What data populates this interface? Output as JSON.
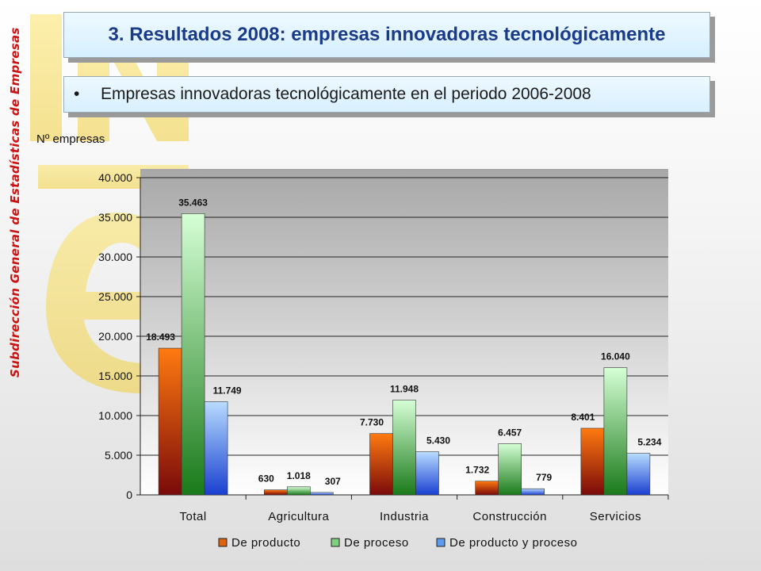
{
  "sidebar": {
    "org_label": "Subdirección General de Estadísticas de Empresas"
  },
  "header": {
    "title": "3. Resultados 2008: empresas innovadoras tecnológicamente",
    "subtitle": "Empresas innovadoras tecnológicamente en el periodo 2006-2008",
    "bullet": "•"
  },
  "colors": {
    "title_text": "#1a3a8a",
    "side_label": "#cc1111",
    "logo": "#f4d44a",
    "series": [
      "#e0620e",
      "#7fd17f",
      "#5a9cf0"
    ]
  },
  "chart_data": {
    "type": "bar",
    "ylabel": "Nº empresas",
    "ylim": [
      0,
      40000
    ],
    "yticks": [
      0,
      5000,
      10000,
      15000,
      20000,
      25000,
      30000,
      35000,
      40000
    ],
    "ytick_labels": [
      "0",
      "5.000",
      "10.000",
      "15.000",
      "20.000",
      "25.000",
      "30.000",
      "35.000",
      "40.000"
    ],
    "categories": [
      "Total",
      "Agricultura",
      "Industria",
      "Construcción",
      "Servicios"
    ],
    "series": [
      {
        "name": "De producto",
        "values": [
          18493,
          630,
          7730,
          1732,
          8401
        ],
        "labels": [
          "18.493",
          "630",
          "7.730",
          "1.732",
          "8.401"
        ]
      },
      {
        "name": "De proceso",
        "values": [
          35463,
          1018,
          11948,
          6457,
          16040
        ],
        "labels": [
          "35.463",
          "1.018",
          "11.948",
          "6.457",
          "16.040"
        ]
      },
      {
        "name": "De producto y proceso",
        "values": [
          11749,
          307,
          5430,
          779,
          5234
        ],
        "labels": [
          "11.749",
          "307",
          "5.430",
          "779",
          "5.234"
        ]
      }
    ],
    "grid": true,
    "legend": "bottom"
  }
}
